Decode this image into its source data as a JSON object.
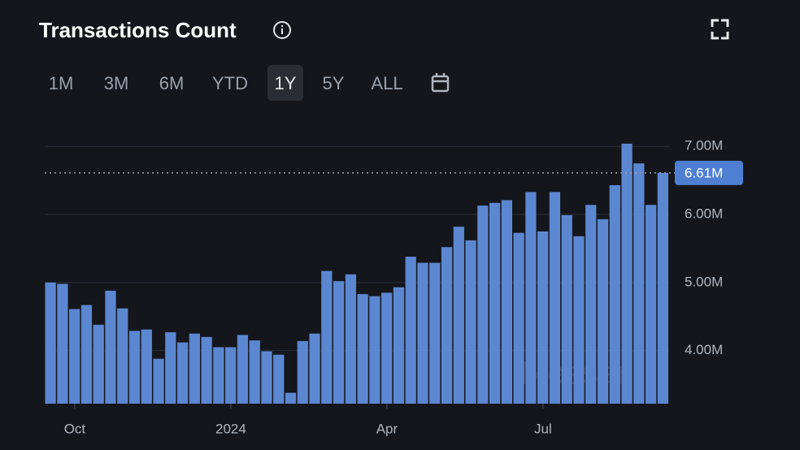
{
  "title": "Transactions Count",
  "range_options": [
    "1M",
    "3M",
    "6M",
    "YTD",
    "1Y",
    "5Y",
    "ALL"
  ],
  "selected_range": 4,
  "watermark": "Messari",
  "chart_data": {
    "type": "bar",
    "color": "#5b87d1",
    "categories": [
      null,
      null,
      "Oct",
      null,
      null,
      null,
      null,
      null,
      null,
      null,
      null,
      null,
      null,
      null,
      null,
      "2024",
      null,
      null,
      null,
      null,
      null,
      null,
      null,
      null,
      null,
      null,
      null,
      null,
      "Apr",
      null,
      null,
      null,
      null,
      null,
      null,
      null,
      null,
      null,
      null,
      null,
      null,
      "Jul",
      null,
      null,
      null,
      null,
      null,
      null,
      null,
      null,
      null,
      null
    ],
    "values": [
      5.0,
      4.98,
      4.61,
      4.67,
      4.38,
      4.88,
      4.62,
      4.29,
      4.31,
      3.88,
      4.27,
      4.12,
      4.25,
      4.2,
      4.05,
      4.05,
      4.23,
      4.15,
      3.99,
      3.94,
      3.38,
      4.14,
      4.25,
      5.17,
      5.02,
      5.12,
      4.83,
      4.8,
      4.85,
      4.93,
      5.38,
      5.29,
      5.29,
      5.52,
      5.82,
      5.62,
      6.13,
      6.17,
      6.21,
      5.73,
      6.33,
      5.75,
      6.33,
      5.99,
      5.68,
      6.14,
      5.93,
      6.43,
      7.04,
      6.75,
      6.14,
      6.61
    ],
    "ylim": [
      3.22,
      7.42
    ],
    "yticks": [
      {
        "value": 4,
        "label": "4.00M"
      },
      {
        "value": 5,
        "label": "5.00M"
      },
      {
        "value": 6,
        "label": "6.00M"
      },
      {
        "value": 7,
        "label": "7.00M"
      }
    ],
    "grid": true,
    "current_value": {
      "value": 6.61,
      "label": "6.61M"
    }
  }
}
